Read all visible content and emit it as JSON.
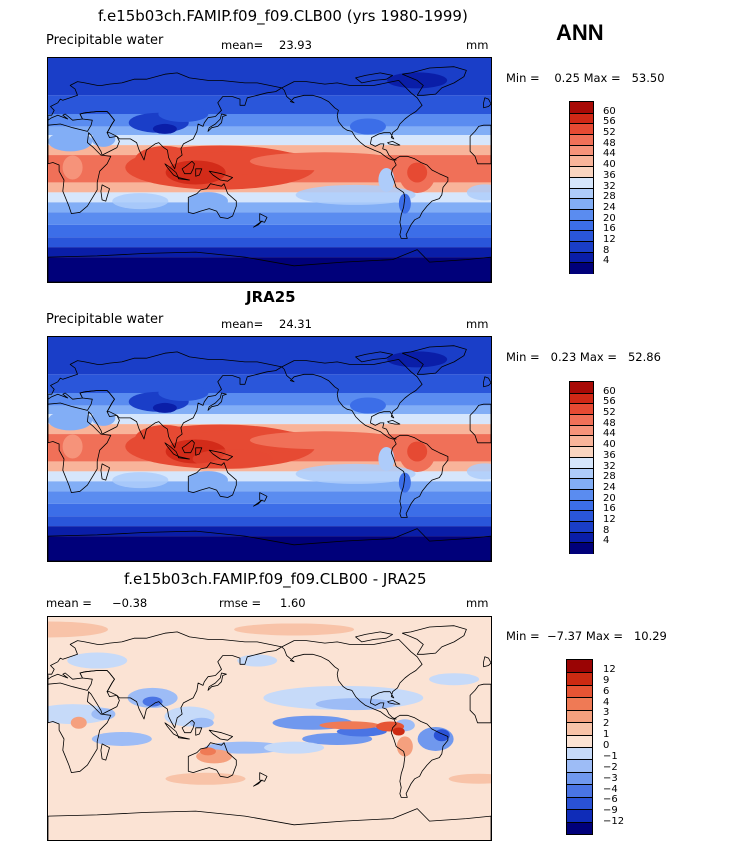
{
  "figure": {
    "season": "ANN"
  },
  "panels": [
    {
      "title": "f.e15b03ch.FAMIP.f09_f09.CLB00 (yrs 1980-1999)",
      "variable": "Precipitable water",
      "mean_label": "mean=",
      "mean_value": "23.93",
      "units": "mm",
      "minmax": "Min =    0.25 Max =   53.50",
      "colorbar_labels": [
        "60",
        "56",
        "52",
        "48",
        "44",
        "40",
        "36",
        "32",
        "28",
        "24",
        "20",
        "16",
        "12",
        "8",
        "4"
      ]
    },
    {
      "title": "JRA25",
      "variable": "Precipitable water",
      "mean_label": "mean=",
      "mean_value": "24.31",
      "units": "mm",
      "minmax": "Min =   0.23 Max =   52.86",
      "colorbar_labels": [
        "60",
        "56",
        "52",
        "48",
        "44",
        "40",
        "36",
        "32",
        "28",
        "24",
        "20",
        "16",
        "12",
        "8",
        "4"
      ]
    },
    {
      "title": "f.e15b03ch.FAMIP.f09_f09.CLB00 - JRA25",
      "mean_label": "mean =",
      "mean_value": "−0.38",
      "rmse_label": "rmse =",
      "rmse_value": "1.60",
      "units": "mm",
      "minmax": "Min =  −7.37 Max =   10.29",
      "colorbar_labels": [
        "12",
        "9",
        "6",
        "4",
        "3",
        "2",
        "1",
        "0",
        "−1",
        "−2",
        "−3",
        "−4",
        "−6",
        "−9",
        "−12"
      ]
    }
  ],
  "colors": {
    "abs_scale": [
      "#00007a",
      "#0a1ea8",
      "#1a3ec8",
      "#2a56da",
      "#3c6ee8",
      "#5a8cf0",
      "#82aef6",
      "#aeccfa",
      "#d6e6fc",
      "#f9d4c0",
      "#f8b49a",
      "#f6937a",
      "#f07058",
      "#e64a33",
      "#d02816",
      "#a80a06"
    ],
    "diff_scale": [
      "#00007a",
      "#0f2cb8",
      "#2a52d6",
      "#4a74e4",
      "#7098ee",
      "#9dbcf6",
      "#c6daf9",
      "#fbe3d4",
      "#f8c3a8",
      "#f5a07e",
      "#ef7a55",
      "#e65434",
      "#cc2a12",
      "#9a0404"
    ]
  },
  "chart_data": [
    {
      "type": "heatmap",
      "title": "f.e15b03ch.FAMIP.f09_f09.CLB00 (yrs 1980-1999)",
      "variable": "Precipitable water",
      "units": "mm",
      "season": "ANN",
      "mean": 23.93,
      "min": 0.25,
      "max": 53.5,
      "contour_levels": [
        4,
        8,
        12,
        16,
        20,
        24,
        28,
        32,
        36,
        40,
        44,
        48,
        52,
        56,
        60
      ]
    },
    {
      "type": "heatmap",
      "title": "JRA25",
      "variable": "Precipitable water",
      "units": "mm",
      "season": "ANN",
      "mean": 24.31,
      "min": 0.23,
      "max": 52.86,
      "contour_levels": [
        4,
        8,
        12,
        16,
        20,
        24,
        28,
        32,
        36,
        40,
        44,
        48,
        52,
        56,
        60
      ]
    },
    {
      "type": "heatmap",
      "title": "f.e15b03ch.FAMIP.f09_f09.CLB00 - JRA25",
      "units": "mm",
      "season": "ANN",
      "mean": -0.38,
      "rmse": 1.6,
      "min": -7.37,
      "max": 10.29,
      "contour_levels": [
        -12,
        -9,
        -6,
        -4,
        -3,
        -2,
        -1,
        0,
        1,
        2,
        3,
        4,
        6,
        9,
        12
      ]
    }
  ]
}
